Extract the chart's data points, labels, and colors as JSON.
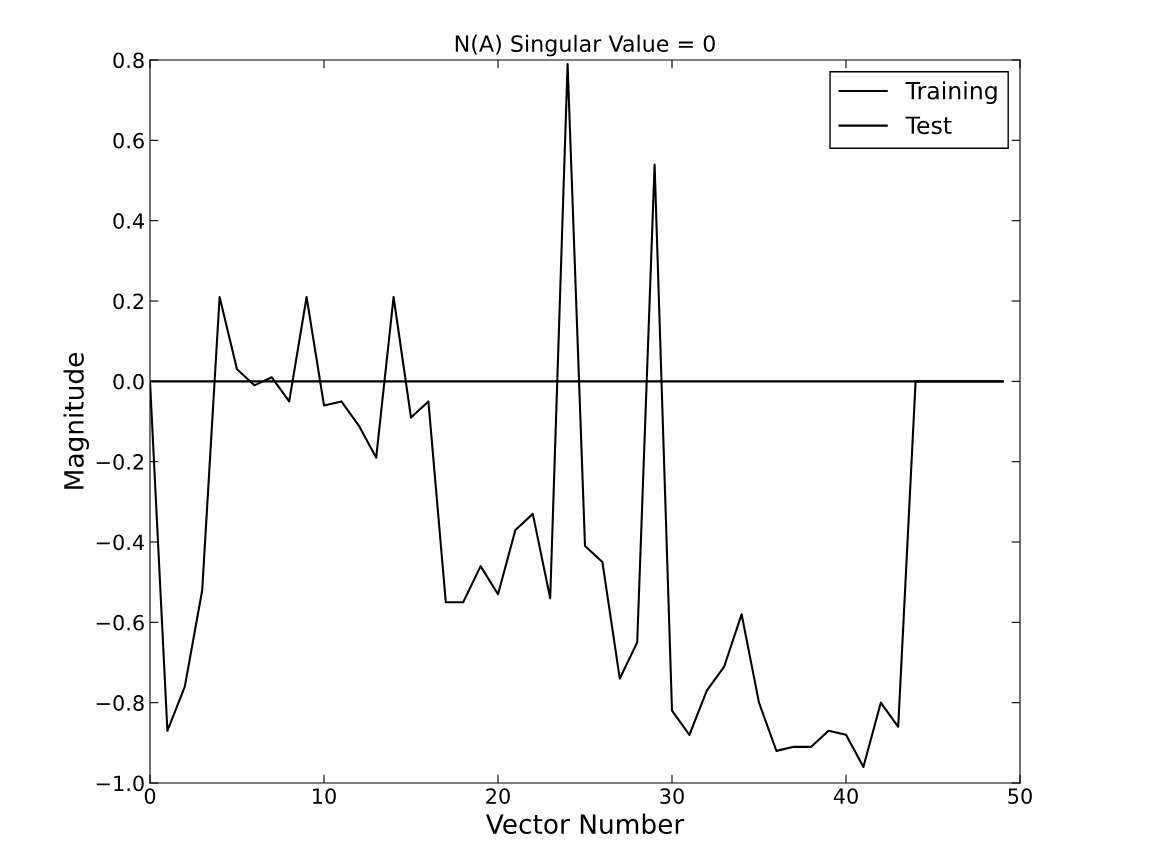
{
  "chart_data": {
    "type": "line",
    "title": "N(A) Singular Value = 0",
    "xlabel": "Vector Number",
    "ylabel": "Magnitude",
    "x": [
      0,
      1,
      2,
      3,
      4,
      5,
      6,
      7,
      8,
      9,
      10,
      11,
      12,
      13,
      14,
      15,
      16,
      17,
      18,
      19,
      20,
      21,
      22,
      23,
      24,
      25,
      26,
      27,
      28,
      29,
      30,
      31,
      32,
      33,
      34,
      35,
      36,
      37,
      38,
      39,
      40,
      41,
      42,
      43,
      44,
      45,
      46,
      47,
      48,
      49
    ],
    "series": [
      {
        "name": "Training",
        "color": "#000000",
        "values": [
          0.0,
          -0.87,
          -0.76,
          -0.52,
          0.21,
          0.03,
          -0.01,
          0.01,
          -0.05,
          0.21,
          -0.06,
          -0.05,
          -0.11,
          -0.19,
          0.21,
          -0.09,
          -0.05,
          -0.55,
          -0.55,
          -0.46,
          -0.53,
          -0.37,
          -0.33,
          -0.54,
          0.79,
          -0.41,
          -0.45,
          -0.74,
          -0.65,
          0.54,
          -0.82,
          -0.88,
          -0.77,
          -0.71,
          -0.58,
          -0.8,
          -0.92,
          -0.91,
          -0.91,
          -0.87,
          -0.88,
          -0.96,
          -0.8,
          -0.86,
          0.0,
          0.0,
          0.0,
          0.0,
          0.0,
          0.0
        ]
      },
      {
        "name": "Test",
        "color": "#000000",
        "values": [
          0,
          0,
          0,
          0,
          0,
          0,
          0,
          0,
          0,
          0,
          0,
          0,
          0,
          0,
          0,
          0,
          0,
          0,
          0,
          0,
          0,
          0,
          0,
          0,
          0,
          0,
          0,
          0,
          0,
          0,
          0,
          0,
          0,
          0,
          0,
          0,
          0,
          0,
          0,
          0,
          0,
          0,
          0,
          0,
          0,
          0,
          0,
          0,
          0,
          0
        ]
      }
    ],
    "xlim": [
      0,
      50
    ],
    "ylim": [
      -1.0,
      0.8
    ],
    "xticks": [
      0,
      10,
      20,
      30,
      40,
      50
    ],
    "yticks": [
      {
        "value": -1.0,
        "label": "−1.0"
      },
      {
        "value": -0.8,
        "label": "−0.8"
      },
      {
        "value": -0.6,
        "label": "−0.6"
      },
      {
        "value": -0.4,
        "label": "−0.4"
      },
      {
        "value": -0.2,
        "label": "−0.2"
      },
      {
        "value": 0.0,
        "label": "0.0"
      },
      {
        "value": 0.2,
        "label": "0.2"
      },
      {
        "value": 0.4,
        "label": "0.4"
      },
      {
        "value": 0.6,
        "label": "0.6"
      },
      {
        "value": 0.8,
        "label": "0.8"
      }
    ],
    "legend": "top right",
    "grid": false,
    "marker": "none",
    "line_style": "solid"
  }
}
